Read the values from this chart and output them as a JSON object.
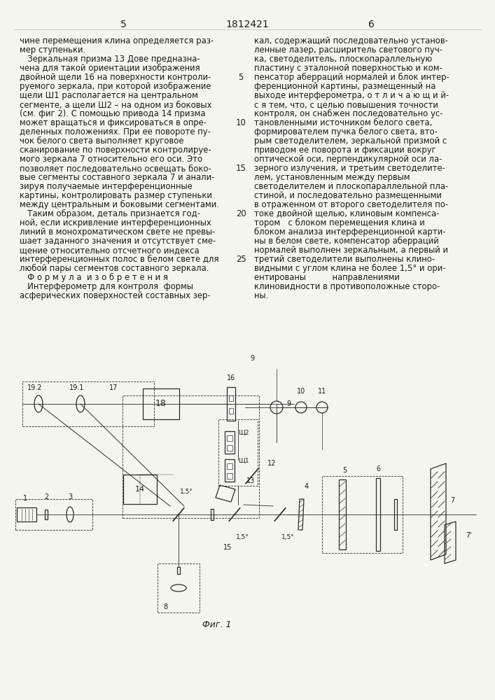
{
  "page_number_left": "5",
  "patent_number": "1812421",
  "page_number_right": "6",
  "background_color": "#f5f5f0",
  "text_color": "#1a1a1a",
  "left_column_text": [
    "чине перемещения клина определяется раз-",
    "мер ступеньки.",
    "   Зеркальная призма 13 Дове предназна-",
    "чена для такой ориентации изображения",
    "двойной щели 16 на поверхности контроли-",
    "руемого зеркала, при которой изображение",
    "щели Ш1 располагается на центральном",
    "сегменте, а щели Ш2 – на одном из боковых",
    "(см. фиг 2). С помощью привода 14 призма",
    "может вращаться и фиксироваться в опре-",
    "деленных положениях. При ее повороте пу-",
    "чок белого света выполняет круговое",
    "сканирование по поверхности контролируе-",
    "мого зеркала 7 относительно его оси. Это",
    "позволяет последовательно освещать боко-",
    "вые сегменты составного зеркала 7 и анали-",
    "зируя получаемые интерференционные",
    "картины, контролировать размер ступеньки",
    "между центральным и боковыми сегментами.",
    "   Таким образом, деталь признается год-",
    "ной, если искривление интерференционных",
    "линий в монохроматическом свете не превы-",
    "шает заданного значения и отсутствует сме-",
    "щение относительно отсчетного индекса",
    "интерференционных полос в белом свете для",
    "любой пары сегментов составного зеркала.",
    "   Ф о р м у л а  и з о б р е т е н и я",
    "   Интерферометр для контроля  формы",
    "асферических поверхностей составных зер-"
  ],
  "right_column_text": [
    "кал, содержащий последовательно установ-",
    "ленные лазер, расширитель светового пуч-",
    "ка, светоделитель, плоскопараллельную",
    "пластину с эталонной поверхностью и ком-",
    "пенсатор аберраций нормалей и блок интер-",
    "ференционной картины, размещенный на",
    "выходе интерферометра, о т л и ч а ю щ и й-",
    "с я тем, что, с целью повышения точности",
    "контроля, он снабжен последовательно ус-",
    "тановленными источником белого света,",
    "формирователем пучка белого света, вто-",
    "рым светоделителем, зеркальной призмой с",
    "приводом ее поворота и фиксации вокруг",
    "оптической оси, перпендикулярной оси ла-",
    "зерного излучения, и третьим светоделите-",
    "лем, установленным между первым",
    "светоделителем и плоскопараллельной пла-",
    "стиной, и последовательно размещенными",
    "в отраженном от второго светоделителя по-",
    "токе двойной щелью, клиновым компенса-",
    "тором   с блоком перемещения клина и",
    "блоком анализа интерференционной карти-",
    "ны в белом свете, компенсатор аберраций",
    "нормалей выполнен зеркальным, а первый и",
    "третий светоделители выполнены клино-",
    "видными с углом клина не более 1,5° и ори-",
    "ентированы          направлениями",
    "клиновидности в противоположные сторо-",
    "ны."
  ],
  "line_numbers": {
    "5": 4,
    "10": 9,
    "15": 14,
    "20": 19,
    "25": 24
  },
  "diagram_caption": "Фиг. 1"
}
